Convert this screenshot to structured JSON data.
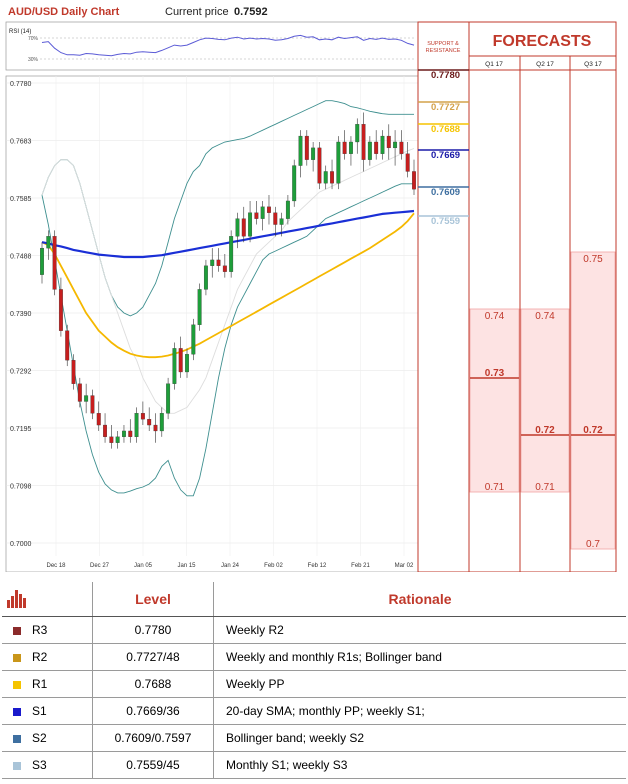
{
  "header": {
    "title": "AUD/USD Daily Chart",
    "price_label": "Current price",
    "price_value": "0.7592"
  },
  "rsi": {
    "label": "RSI (14)",
    "upper": "70%",
    "lower": "30%"
  },
  "forecast_panel": {
    "sr_label_line1": "SUPPORT &",
    "sr_label_line2": "RESISTANCE",
    "title": "FORECASTS",
    "columns": [
      "Q1 17",
      "Q2 17",
      "Q3 17"
    ]
  },
  "chart_data": {
    "type": "candlestick",
    "title": "AUD/USD Daily Chart",
    "ylim": [
      0.7,
      0.778
    ],
    "yticks": [
      "0.7780",
      "0.7683",
      "0.7585",
      "0.7488",
      "0.7390",
      "0.7292",
      "0.7195",
      "0.7098",
      "0.7000"
    ],
    "xticks": [
      "Dec 18",
      "Dec 27",
      "Jan 05",
      "Jan 15",
      "Jan 24",
      "Feb 02",
      "Feb 12",
      "Feb 21",
      "Mar 02"
    ],
    "sr_levels": [
      {
        "label": "0.7780",
        "color": "#6b1a1a"
      },
      {
        "label": "0.7727",
        "color": "#d4a24a"
      },
      {
        "label": "0.7688",
        "color": "#f5c400"
      },
      {
        "label": "0.7669",
        "color": "#1a1aa8"
      },
      {
        "label": "0.7609",
        "color": "#3e6fa0"
      },
      {
        "label": "0.7559",
        "color": "#a9c4d8"
      }
    ],
    "forecasts": [
      {
        "quarter": "Q1 17",
        "labels": [
          {
            "value": 0.74,
            "label": "0.74",
            "bold": false
          },
          {
            "value": 0.73,
            "label": "0.73",
            "bold": true
          },
          {
            "value": 0.71,
            "label": "0.71",
            "bold": false
          }
        ]
      },
      {
        "quarter": "Q2 17",
        "labels": [
          {
            "value": 0.74,
            "label": "0.74",
            "bold": false
          },
          {
            "value": 0.72,
            "label": "0.72",
            "bold": true
          },
          {
            "value": 0.71,
            "label": "0.71",
            "bold": false
          }
        ]
      },
      {
        "quarter": "Q3 17",
        "labels": [
          {
            "value": 0.75,
            "label": "0.75",
            "bold": false
          },
          {
            "value": 0.72,
            "label": "0.72",
            "bold": true
          },
          {
            "value": 0.7,
            "label": "0.7",
            "bold": false
          }
        ]
      }
    ],
    "candles": [
      [
        0.7455,
        0.751,
        0.744,
        0.75
      ],
      [
        0.75,
        0.753,
        0.748,
        0.752
      ],
      [
        0.752,
        0.753,
        0.742,
        0.743
      ],
      [
        0.743,
        0.745,
        0.735,
        0.736
      ],
      [
        0.736,
        0.737,
        0.73,
        0.731
      ],
      [
        0.731,
        0.732,
        0.726,
        0.727
      ],
      [
        0.727,
        0.728,
        0.723,
        0.724
      ],
      [
        0.724,
        0.727,
        0.722,
        0.725
      ],
      [
        0.725,
        0.726,
        0.721,
        0.722
      ],
      [
        0.722,
        0.724,
        0.719,
        0.72
      ],
      [
        0.72,
        0.722,
        0.717,
        0.718
      ],
      [
        0.718,
        0.72,
        0.716,
        0.717
      ],
      [
        0.717,
        0.719,
        0.716,
        0.718
      ],
      [
        0.718,
        0.72,
        0.717,
        0.719
      ],
      [
        0.719,
        0.721,
        0.717,
        0.718
      ],
      [
        0.718,
        0.723,
        0.717,
        0.722
      ],
      [
        0.722,
        0.724,
        0.72,
        0.721
      ],
      [
        0.721,
        0.723,
        0.719,
        0.72
      ],
      [
        0.72,
        0.722,
        0.717,
        0.719
      ],
      [
        0.719,
        0.723,
        0.718,
        0.722
      ],
      [
        0.722,
        0.728,
        0.721,
        0.727
      ],
      [
        0.727,
        0.734,
        0.726,
        0.733
      ],
      [
        0.733,
        0.735,
        0.728,
        0.729
      ],
      [
        0.729,
        0.733,
        0.728,
        0.732
      ],
      [
        0.732,
        0.738,
        0.731,
        0.737
      ],
      [
        0.737,
        0.744,
        0.736,
        0.743
      ],
      [
        0.743,
        0.748,
        0.742,
        0.747
      ],
      [
        0.747,
        0.75,
        0.745,
        0.748
      ],
      [
        0.748,
        0.75,
        0.746,
        0.747
      ],
      [
        0.747,
        0.749,
        0.745,
        0.746
      ],
      [
        0.746,
        0.753,
        0.745,
        0.752
      ],
      [
        0.752,
        0.756,
        0.75,
        0.755
      ],
      [
        0.755,
        0.757,
        0.751,
        0.752
      ],
      [
        0.752,
        0.758,
        0.751,
        0.756
      ],
      [
        0.756,
        0.758,
        0.754,
        0.755
      ],
      [
        0.755,
        0.758,
        0.753,
        0.757
      ],
      [
        0.757,
        0.759,
        0.754,
        0.756
      ],
      [
        0.756,
        0.757,
        0.752,
        0.754
      ],
      [
        0.754,
        0.756,
        0.752,
        0.755
      ],
      [
        0.755,
        0.759,
        0.754,
        0.758
      ],
      [
        0.758,
        0.765,
        0.757,
        0.764
      ],
      [
        0.764,
        0.77,
        0.762,
        0.769
      ],
      [
        0.769,
        0.77,
        0.764,
        0.765
      ],
      [
        0.765,
        0.768,
        0.763,
        0.767
      ],
      [
        0.767,
        0.768,
        0.76,
        0.761
      ],
      [
        0.761,
        0.764,
        0.76,
        0.763
      ],
      [
        0.763,
        0.765,
        0.76,
        0.761
      ],
      [
        0.761,
        0.769,
        0.76,
        0.768
      ],
      [
        0.768,
        0.77,
        0.765,
        0.766
      ],
      [
        0.766,
        0.769,
        0.764,
        0.768
      ],
      [
        0.768,
        0.772,
        0.766,
        0.771
      ],
      [
        0.771,
        0.773,
        0.763,
        0.765
      ],
      [
        0.765,
        0.769,
        0.764,
        0.768
      ],
      [
        0.768,
        0.77,
        0.765,
        0.766
      ],
      [
        0.766,
        0.77,
        0.765,
        0.769
      ],
      [
        0.769,
        0.771,
        0.765,
        0.767
      ],
      [
        0.767,
        0.77,
        0.764,
        0.768
      ],
      [
        0.768,
        0.77,
        0.765,
        0.766
      ],
      [
        0.766,
        0.768,
        0.762,
        0.763
      ],
      [
        0.763,
        0.765,
        0.759,
        0.76
      ]
    ],
    "rsi_values": [
      58,
      60,
      45,
      35,
      30,
      30,
      29,
      33,
      32,
      30,
      29,
      28,
      31,
      33,
      32,
      36,
      37,
      36,
      35,
      40,
      46,
      52,
      50,
      52,
      58,
      64,
      68,
      67,
      65,
      64,
      68,
      70,
      66,
      68,
      66,
      67,
      66,
      63,
      64,
      67,
      72,
      74,
      70,
      71,
      64,
      66,
      64,
      70,
      67,
      69,
      71,
      63,
      67,
      65,
      68,
      65,
      66,
      63,
      56,
      52
    ],
    "sma20": [
      0.759,
      0.762,
      0.764,
      0.765,
      0.765,
      0.764,
      0.761,
      0.757,
      0.753,
      0.749,
      0.745,
      0.742,
      0.739,
      0.736,
      0.733,
      0.731,
      0.728,
      0.726,
      0.724,
      0.723,
      0.722,
      0.722,
      0.7225,
      0.723,
      0.7245,
      0.726,
      0.728,
      0.731,
      0.734,
      0.737,
      0.74,
      0.743,
      0.745,
      0.747,
      0.749,
      0.75,
      0.751,
      0.752,
      0.753,
      0.7545,
      0.7555,
      0.7565,
      0.7575,
      0.7585,
      0.7595,
      0.76,
      0.7605,
      0.761,
      0.7615,
      0.762,
      0.7625,
      0.763,
      0.7635,
      0.764,
      0.7645,
      0.765,
      0.7655,
      0.766,
      0.7665,
      0.7669
    ],
    "bb_upper": [
      0.759,
      0.762,
      0.764,
      0.765,
      0.765,
      0.764,
      0.761,
      0.757,
      0.753,
      0.749,
      0.745,
      0.742,
      0.74,
      0.739,
      0.7385,
      0.739,
      0.74,
      0.742,
      0.744,
      0.747,
      0.751,
      0.755,
      0.758,
      0.761,
      0.763,
      0.764,
      0.766,
      0.767,
      0.7675,
      0.768,
      0.7682,
      0.7684,
      0.7686,
      0.769,
      0.7695,
      0.77,
      0.7705,
      0.771,
      0.7715,
      0.772,
      0.7725,
      0.773,
      0.7735,
      0.774,
      0.7745,
      0.775,
      0.775,
      0.7748,
      0.7745,
      0.774,
      0.7738,
      0.7735,
      0.7732,
      0.773,
      0.7728,
      0.7727,
      0.7727,
      0.7727,
      0.7727,
      0.7727
    ],
    "bb_lower": [
      0.759,
      0.754,
      0.748,
      0.742,
      0.736,
      0.73,
      0.724,
      0.719,
      0.715,
      0.712,
      0.71,
      0.709,
      0.7085,
      0.7085,
      0.7088,
      0.7092,
      0.7095,
      0.71,
      0.711,
      0.713,
      0.714,
      0.711,
      0.709,
      0.708,
      0.708,
      0.711,
      0.716,
      0.722,
      0.728,
      0.733,
      0.737,
      0.74,
      0.742,
      0.744,
      0.746,
      0.748,
      0.749,
      0.7495,
      0.75,
      0.7505,
      0.751,
      0.7515,
      0.752,
      0.753,
      0.754,
      0.755,
      0.7555,
      0.756,
      0.7565,
      0.757,
      0.7575,
      0.758,
      0.7585,
      0.759,
      0.7595,
      0.76,
      0.7605,
      0.7609,
      0.7609,
      0.7609
    ],
    "sma50": [
      0.751,
      0.7505,
      0.749,
      0.747,
      0.745,
      0.743,
      0.741,
      0.739,
      0.7375,
      0.736,
      0.735,
      0.734,
      0.7332,
      0.7326,
      0.7321,
      0.7318,
      0.7316,
      0.7315,
      0.7315,
      0.7316,
      0.7318,
      0.7321,
      0.7324,
      0.7328,
      0.7333,
      0.7338,
      0.7344,
      0.735,
      0.7356,
      0.7362,
      0.7368,
      0.7374,
      0.738,
      0.7386,
      0.7392,
      0.7398,
      0.7404,
      0.741,
      0.7416,
      0.7422,
      0.7428,
      0.7434,
      0.744,
      0.7446,
      0.7452,
      0.7458,
      0.7464,
      0.747,
      0.7476,
      0.7482,
      0.7488,
      0.7494,
      0.75,
      0.7507,
      0.7514,
      0.7521,
      0.7528,
      0.7536,
      0.7546,
      0.7559
    ],
    "sma200": [
      0.751,
      0.7508,
      0.7505,
      0.7503,
      0.75,
      0.7497,
      0.7495,
      0.7493,
      0.7491,
      0.7489,
      0.7488,
      0.7487,
      0.7486,
      0.7485,
      0.7485,
      0.7485,
      0.7485,
      0.7486,
      0.7487,
      0.7488,
      0.749,
      0.7492,
      0.7494,
      0.7496,
      0.7498,
      0.75,
      0.7502,
      0.7504,
      0.7506,
      0.7508,
      0.751,
      0.7512,
      0.7514,
      0.7516,
      0.7518,
      0.752,
      0.7522,
      0.7524,
      0.7526,
      0.7528,
      0.753,
      0.7532,
      0.7534,
      0.7536,
      0.7538,
      0.754,
      0.7542,
      0.7544,
      0.7546,
      0.7548,
      0.755,
      0.7552,
      0.7554,
      0.7556,
      0.7558,
      0.7559,
      0.756,
      0.7561,
      0.7562,
      0.7563
    ]
  },
  "table": {
    "headers": {
      "level": "Level",
      "rationale": "Rationale"
    },
    "rows": [
      {
        "key": "R3",
        "level": "0.7780",
        "rationale": "Weekly R2",
        "color": "#8b2b2b"
      },
      {
        "key": "R2",
        "level": "0.7727/48",
        "rationale": "Weekly and monthly R1s; Bollinger band",
        "color": "#c9961a"
      },
      {
        "key": "R1",
        "level": "0.7688",
        "rationale": "Weekly PP",
        "color": "#f5c400"
      },
      {
        "key": "S1",
        "level": "0.7669/36",
        "rationale": "20-day SMA; monthly PP; weekly S1;",
        "color": "#1a1acc"
      },
      {
        "key": "S2",
        "level": "0.7609/0.7597",
        "rationale": "Bollinger band; weekly S2",
        "color": "#3e6fa0"
      },
      {
        "key": "S3",
        "level": "0.7559/45",
        "rationale": "Monthly S1; weekly S3",
        "color": "#a9c4d8"
      }
    ]
  }
}
